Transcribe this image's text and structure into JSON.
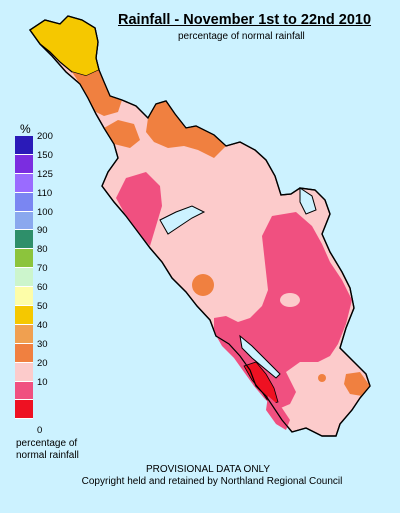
{
  "title": "Rainfall - November 1st to 22nd 2010",
  "subtitle": "percentage of normal rainfall",
  "legend": {
    "unit": "%",
    "entries": [
      {
        "label": "200",
        "color": "#2a1ab8"
      },
      {
        "label": "150",
        "color": "#7b2de0"
      },
      {
        "label": "125",
        "color": "#9a6bff"
      },
      {
        "label": "110",
        "color": "#7a86f2"
      },
      {
        "label": "100",
        "color": "#8aa8ee"
      },
      {
        "label": "90",
        "color": "#2e8f6a"
      },
      {
        "label": "80",
        "color": "#8cc43c"
      },
      {
        "label": "70",
        "color": "#ccf5cc"
      },
      {
        "label": "60",
        "color": "#fdfda8"
      },
      {
        "label": "50",
        "color": "#f5c800"
      },
      {
        "label": "40",
        "color": "#f0a050"
      },
      {
        "label": "30",
        "color": "#f08040"
      },
      {
        "label": "20",
        "color": "#fccbcb"
      },
      {
        "label": "10",
        "color": "#f05080"
      },
      {
        "label": "",
        "color": "#ee1122"
      }
    ],
    "last_tick": "0",
    "caption_line1": "percentage of",
    "caption_line2": "normal rainfall"
  },
  "footer": {
    "line1": "PROVISIONAL DATA ONLY",
    "line2": "Copyright held and retained by Northland Regional Council"
  },
  "map_colors": {
    "sea": "#ccf2ff",
    "land_pale_pink": "#fccbcb",
    "land_pink": "#f05080",
    "land_orange": "#f08040",
    "land_light_orange": "#f0a050",
    "land_yellow": "#f5c800",
    "land_red": "#ee1122"
  }
}
